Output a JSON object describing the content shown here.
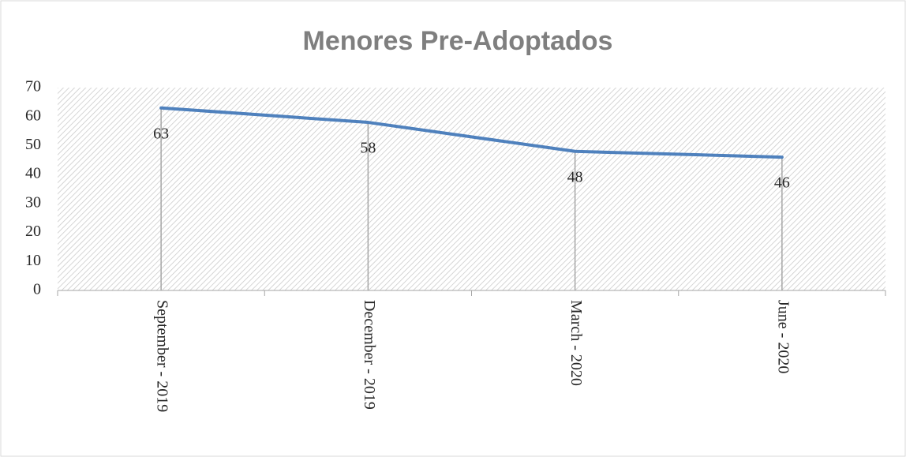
{
  "chart_data": {
    "type": "line",
    "title": "Menores Pre-Adoptados",
    "categories": [
      "September - 2019",
      "December - 2019",
      "March - 2020",
      "June - 2020"
    ],
    "series": [
      {
        "name": "Menores Pre-Adoptados",
        "color": "#4f81bd",
        "values": [
          63,
          58,
          48,
          46
        ]
      }
    ],
    "ylim": [
      0,
      70
    ],
    "yticks": [
      0,
      10,
      20,
      30,
      40,
      50,
      60,
      70
    ],
    "drop_lines": true,
    "data_labels": true
  }
}
